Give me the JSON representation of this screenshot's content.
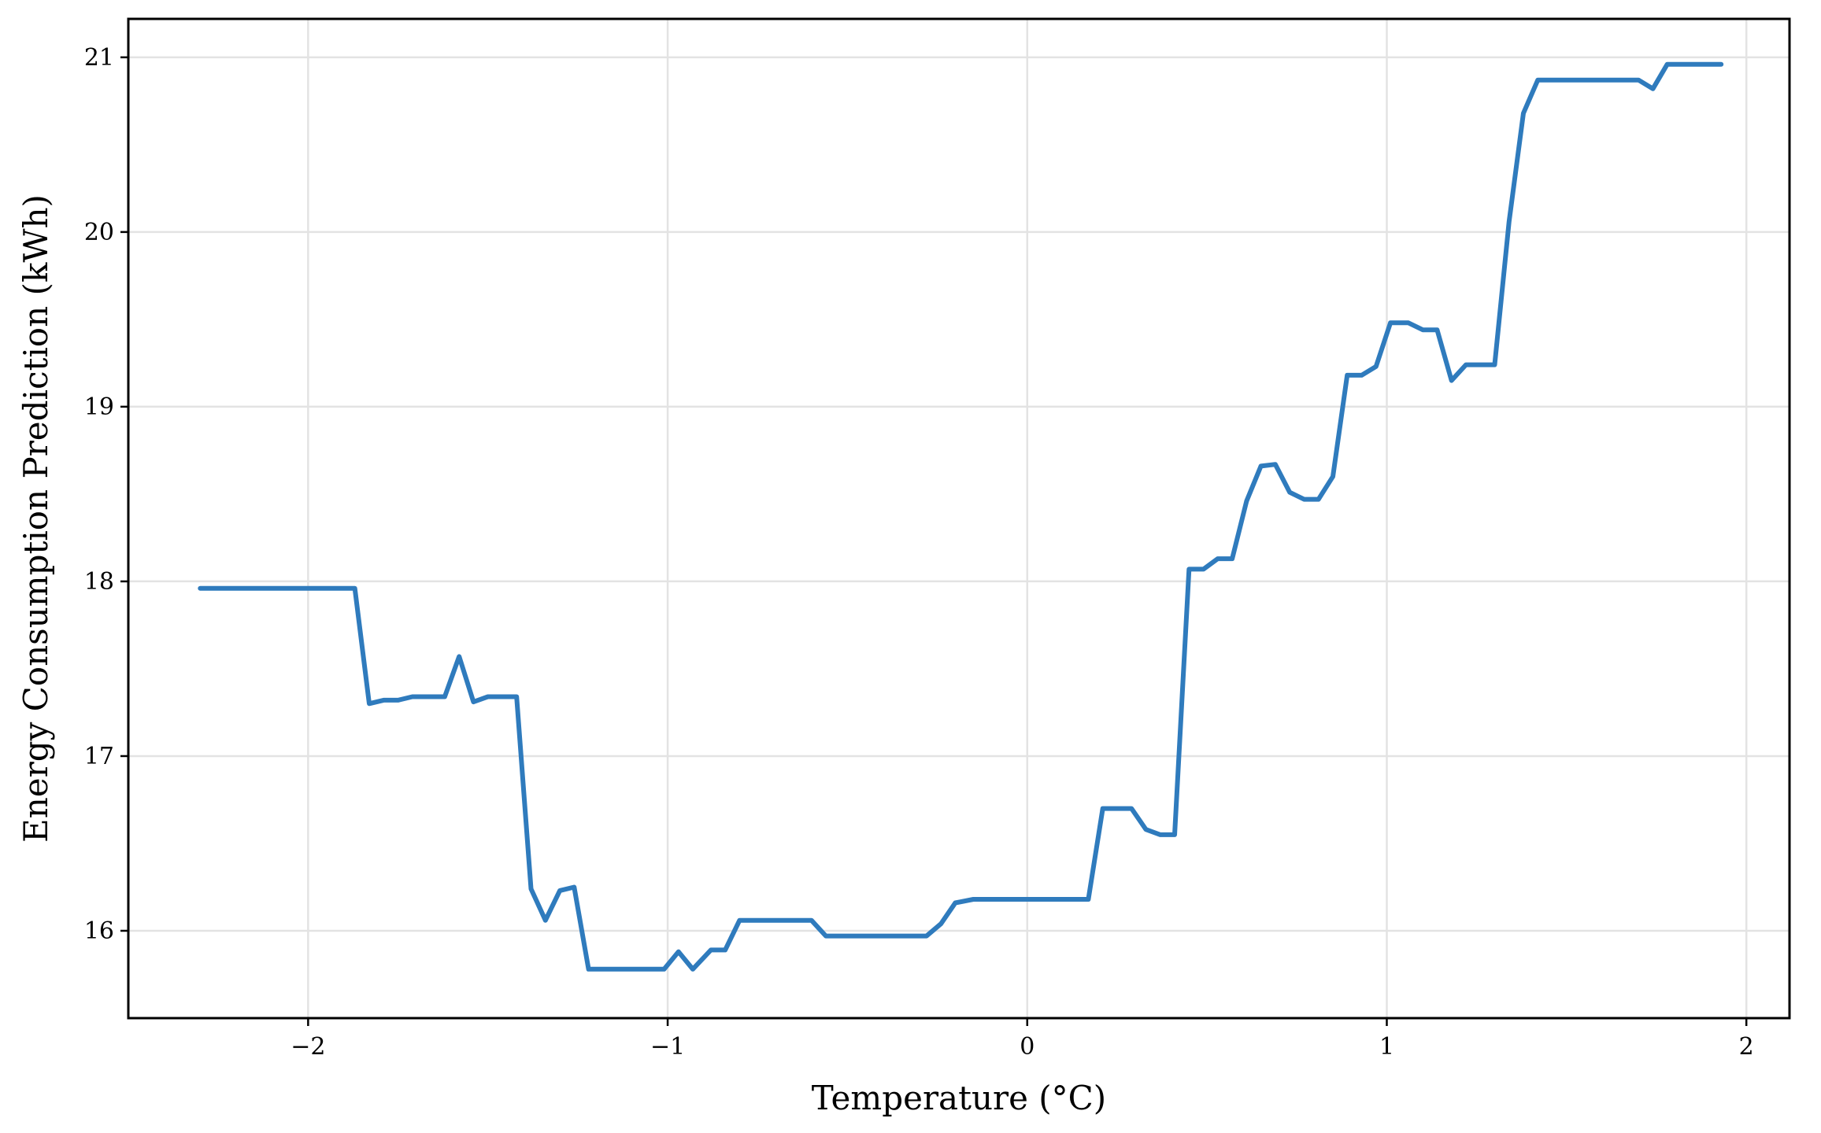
{
  "chart_data": {
    "type": "line",
    "title": "",
    "xlabel": "Temperature (°C)",
    "ylabel": "Energy Consumption Prediction (kWh)",
    "xlim": [
      -2.5,
      2.12
    ],
    "ylim": [
      15.5,
      21.22
    ],
    "x_ticks": [
      -2,
      -1,
      0,
      1,
      2
    ],
    "x_tick_labels": [
      "−2",
      "−1",
      "0",
      "1",
      "2"
    ],
    "y_ticks": [
      16,
      17,
      18,
      19,
      20,
      21
    ],
    "y_tick_labels": [
      "16",
      "17",
      "18",
      "19",
      "20",
      "21"
    ],
    "grid": true,
    "legend": "none",
    "series": [
      {
        "color": "#2f7bbd",
        "x": [
          -2.3,
          -1.87,
          -1.83,
          -1.79,
          -1.75,
          -1.71,
          -1.67,
          -1.62,
          -1.58,
          -1.54,
          -1.5,
          -1.46,
          -1.42,
          -1.38,
          -1.34,
          -1.3,
          -1.26,
          -1.22,
          -1.17,
          -1.13,
          -1.09,
          -1.05,
          -1.01,
          -0.97,
          -0.93,
          -0.88,
          -0.84,
          -0.8,
          -0.76,
          -0.72,
          -0.68,
          -0.64,
          -0.6,
          -0.56,
          -0.52,
          -0.48,
          -0.44,
          -0.4,
          -0.36,
          -0.32,
          -0.28,
          -0.24,
          -0.2,
          -0.15,
          -0.11,
          0.17,
          0.21,
          0.25,
          0.29,
          0.33,
          0.37,
          0.41,
          0.45,
          0.49,
          0.53,
          0.57,
          0.61,
          0.65,
          0.69,
          0.73,
          0.77,
          0.81,
          0.85,
          0.89,
          0.93,
          0.97,
          1.01,
          1.06,
          1.1,
          1.14,
          1.18,
          1.22,
          1.26,
          1.3,
          1.34,
          1.38,
          1.42,
          1.46,
          1.5,
          1.54,
          1.7,
          1.74,
          1.78,
          1.93
        ],
        "y": [
          17.96,
          17.96,
          17.3,
          17.32,
          17.32,
          17.34,
          17.34,
          17.34,
          17.57,
          17.31,
          17.34,
          17.34,
          17.34,
          16.24,
          16.06,
          16.23,
          16.25,
          15.78,
          15.78,
          15.78,
          15.78,
          15.78,
          15.78,
          15.88,
          15.78,
          15.89,
          15.89,
          16.06,
          16.06,
          16.06,
          16.06,
          16.06,
          16.06,
          15.97,
          15.97,
          15.97,
          15.97,
          15.97,
          15.97,
          15.97,
          15.97,
          16.04,
          16.16,
          16.18,
          16.18,
          16.18,
          16.7,
          16.7,
          16.7,
          16.58,
          16.55,
          16.55,
          18.07,
          18.07,
          18.13,
          18.13,
          18.46,
          18.66,
          18.67,
          18.51,
          18.47,
          18.47,
          18.6,
          19.18,
          19.18,
          19.23,
          19.48,
          19.48,
          19.44,
          19.44,
          19.15,
          19.24,
          19.24,
          19.24,
          20.06,
          20.68,
          20.87,
          20.87,
          20.87,
          20.87,
          20.87,
          20.82,
          20.96,
          20.96
        ]
      }
    ]
  }
}
